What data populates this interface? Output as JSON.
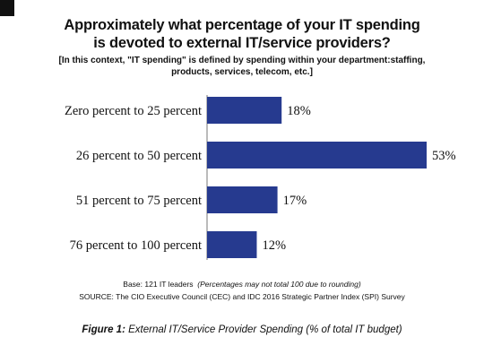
{
  "title_lines": [
    "Approximately what percentage of your IT spending",
    "is devoted to external IT/service providers?"
  ],
  "subtitle_lines": [
    "[In this context, \"IT spending\" is defined by spending within your department:staffing,",
    "products, services, telecom, etc.]"
  ],
  "notes": {
    "base_text": "Base: 121 IT leaders",
    "base_note": "(Percentages may not total 100 due to rounding)",
    "source": "SOURCE: The CIO Executive Council (CEC) and IDC 2016 Strategic Partner Index (SPI) Survey"
  },
  "caption": {
    "label": "Figure 1:",
    "text": " External IT/Service Provider Spending (% of total IT budget)"
  },
  "colors": {
    "bar": "#263a8f",
    "text": "#111111"
  },
  "chart_data": {
    "type": "bar",
    "orientation": "horizontal",
    "categories": [
      "Zero percent to 25 percent",
      "26 percent to 50 percent",
      "51 percent to 75 percent",
      "76 percent to 100 percent"
    ],
    "values": [
      18,
      53,
      17,
      12
    ],
    "value_labels": [
      "18%",
      "53%",
      "17%",
      "12%"
    ],
    "xlim": [
      0,
      53
    ],
    "grid": false,
    "legend": "none"
  }
}
